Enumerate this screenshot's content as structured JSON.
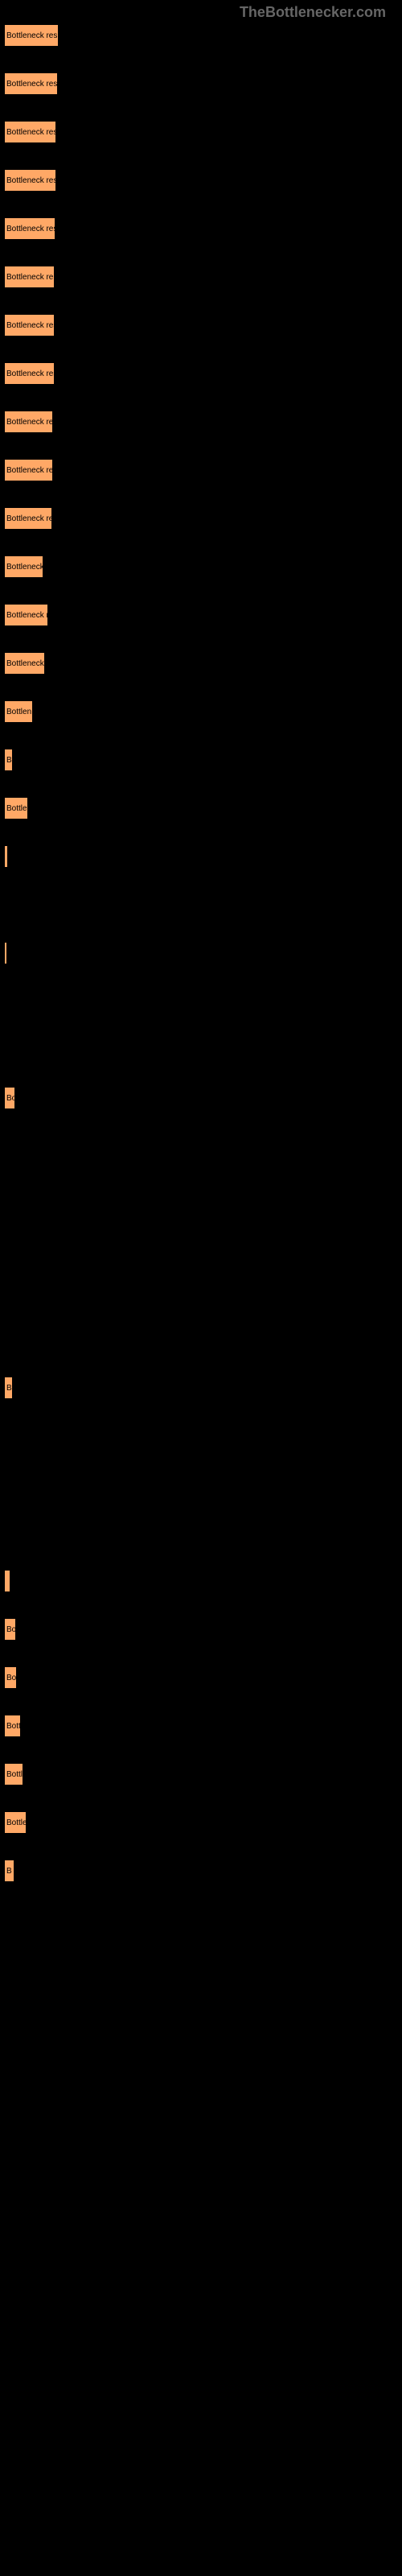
{
  "header": "TheBottlenecker.com",
  "bars": [
    {
      "width": 68,
      "label": "Bottleneck resu"
    },
    {
      "width": 67,
      "label": "Bottleneck resu"
    },
    {
      "width": 65,
      "label": "Bottleneck resu"
    },
    {
      "width": 65,
      "label": "Bottleneck res"
    },
    {
      "width": 64,
      "label": "Bottleneck res"
    },
    {
      "width": 63,
      "label": "Bottleneck re"
    },
    {
      "width": 63,
      "label": "Bottleneck res"
    },
    {
      "width": 63,
      "label": "Bottleneck res"
    },
    {
      "width": 61,
      "label": "Bottleneck re"
    },
    {
      "width": 61,
      "label": "Bottleneck re"
    },
    {
      "width": 60,
      "label": "Bottleneck re"
    },
    {
      "width": 49,
      "label": "Bottleneck"
    },
    {
      "width": 55,
      "label": "Bottleneck r"
    },
    {
      "width": 51,
      "label": "Bottleneck r"
    },
    {
      "width": 36,
      "label": "Bottlen"
    },
    {
      "width": 11,
      "label": "B"
    },
    {
      "width": 30,
      "label": "Bottle"
    },
    {
      "width": 5,
      "label": ""
    },
    {
      "width": 0,
      "label": ""
    },
    {
      "width": 3,
      "label": ""
    },
    {
      "width": 0,
      "label": ""
    },
    {
      "width": 0,
      "label": ""
    },
    {
      "width": 14,
      "label": "Bo"
    },
    {
      "width": 0,
      "label": ""
    },
    {
      "width": 0,
      "label": ""
    },
    {
      "width": 0,
      "label": ""
    },
    {
      "width": 0,
      "label": ""
    },
    {
      "width": 0,
      "label": ""
    },
    {
      "width": 11,
      "label": "B"
    },
    {
      "width": 0,
      "label": ""
    },
    {
      "width": 0,
      "label": ""
    },
    {
      "width": 0,
      "label": ""
    },
    {
      "width": 8,
      "label": ""
    },
    {
      "width": 15,
      "label": "Bo"
    },
    {
      "width": 16,
      "label": "Bo"
    },
    {
      "width": 21,
      "label": "Bott"
    },
    {
      "width": 24,
      "label": "Bottl"
    },
    {
      "width": 28,
      "label": "Bottle"
    },
    {
      "width": 13,
      "label": "B"
    }
  ],
  "bar_bg_color": "#ffa866",
  "page_bg_color": "#000000"
}
